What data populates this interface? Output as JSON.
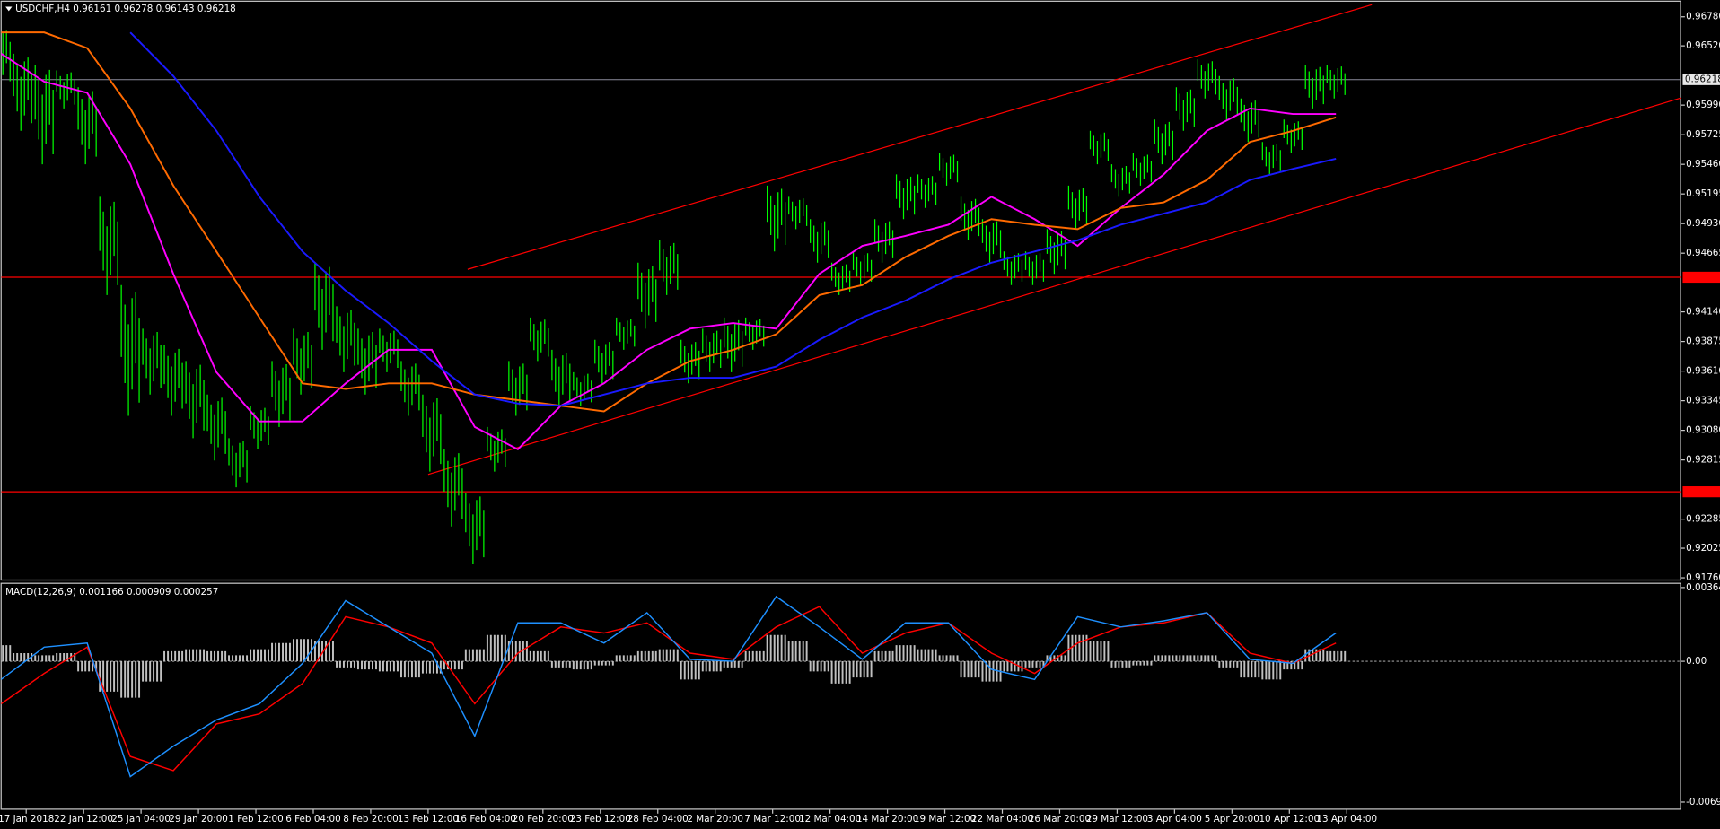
{
  "chart_data": [
    {
      "type": "candlestick",
      "title": "USDCHF,H4  0.96161 0.96278 0.96143 0.96218",
      "xlim": [
        0,
        468
      ],
      "xticks": [
        {
          "value": 7,
          "label": "17 Jan 2018"
        },
        {
          "value": 23,
          "label": "22 Jan 12:00"
        },
        {
          "value": 39,
          "label": "25 Jan 04:00"
        },
        {
          "value": 55,
          "label": "29 Jan 20:00"
        },
        {
          "value": 71,
          "label": "1 Feb 12:00"
        },
        {
          "value": 87,
          "label": "6 Feb 04:00"
        },
        {
          "value": 103,
          "label": "8 Feb 20:00"
        },
        {
          "value": 119,
          "label": "13 Feb 12:00"
        },
        {
          "value": 135,
          "label": "16 Feb 04:00"
        },
        {
          "value": 151,
          "label": "20 Feb 20:00"
        },
        {
          "value": 167,
          "label": "23 Feb 12:00"
        },
        {
          "value": 183,
          "label": "28 Feb 04:00"
        },
        {
          "value": 199,
          "label": "2 Mar 20:00"
        },
        {
          "value": 215,
          "label": "7 Mar 12:00"
        },
        {
          "value": 231,
          "label": "12 Mar 04:00"
        },
        {
          "value": 247,
          "label": "14 Mar 20:00"
        },
        {
          "value": 263,
          "label": "19 Mar 12:00"
        },
        {
          "value": 279,
          "label": "22 Mar 04:00"
        },
        {
          "value": 295,
          "label": "26 Mar 20:00"
        },
        {
          "value": 311,
          "label": "29 Mar 12:00"
        },
        {
          "value": 327,
          "label": "3 Apr 04:00"
        },
        {
          "value": 343,
          "label": "5 Apr 20:00"
        },
        {
          "value": 359,
          "label": "10 Apr 12:00"
        },
        {
          "value": 375,
          "label": "13 Apr 04:00"
        }
      ],
      "ylim": [
        0.9175,
        0.9691
      ],
      "yticks": [
        {
          "value": 0.9678,
          "label": "0.96780"
        },
        {
          "value": 0.9652,
          "label": "0.96520"
        },
        {
          "value": 0.9599,
          "label": "0.95990"
        },
        {
          "value": 0.95725,
          "label": "0.95725"
        },
        {
          "value": 0.9546,
          "label": "0.95460"
        },
        {
          "value": 0.95195,
          "label": "0.95195"
        },
        {
          "value": 0.9493,
          "label": "0.94930"
        },
        {
          "value": 0.94665,
          "label": "0.94665"
        },
        {
          "value": 0.9414,
          "label": "0.94140"
        },
        {
          "value": 0.93875,
          "label": "0.93875"
        },
        {
          "value": 0.9361,
          "label": "0.93610"
        },
        {
          "value": 0.93345,
          "label": "0.93345"
        },
        {
          "value": 0.9308,
          "label": "0.93080"
        },
        {
          "value": 0.92815,
          "label": "0.92815"
        },
        {
          "value": 0.92285,
          "label": "0.92285"
        },
        {
          "value": 0.92025,
          "label": "0.92025"
        },
        {
          "value": 0.9176,
          "label": "0.91760"
        }
      ],
      "color": "#00ff00",
      "x": [
        0,
        6,
        12,
        18,
        24,
        30,
        36,
        42,
        48,
        54,
        60,
        66,
        72,
        78,
        84,
        90,
        96,
        102,
        108,
        114,
        120,
        126,
        132,
        138,
        144,
        150,
        156,
        162,
        168,
        174,
        180,
        186,
        192,
        198,
        204,
        210,
        216,
        222,
        228,
        234,
        240,
        246,
        252,
        258,
        264,
        270,
        276,
        282,
        288,
        294,
        300,
        306,
        312,
        318,
        324,
        330,
        336,
        342,
        348,
        354,
        360,
        366,
        372
      ],
      "high": [
        0.9669,
        0.9645,
        0.9635,
        0.963,
        0.9615,
        0.9517,
        0.9438,
        0.9399,
        0.9384,
        0.937,
        0.934,
        0.9301,
        0.933,
        0.937,
        0.9399,
        0.9458,
        0.9419,
        0.9399,
        0.9399,
        0.937,
        0.934,
        0.9291,
        0.9252,
        0.9311,
        0.937,
        0.9409,
        0.938,
        0.936,
        0.9389,
        0.9409,
        0.9458,
        0.9478,
        0.9389,
        0.9399,
        0.9409,
        0.9409,
        0.9527,
        0.9517,
        0.9497,
        0.9458,
        0.9468,
        0.9497,
        0.9537,
        0.9537,
        0.9556,
        0.9517,
        0.9497,
        0.9468,
        0.9468,
        0.9488,
        0.9527,
        0.9576,
        0.9546,
        0.9556,
        0.9586,
        0.9615,
        0.964,
        0.9625,
        0.9605,
        0.9566,
        0.9586,
        0.9635,
        0.9635
      ],
      "low": [
        0.9615,
        0.9576,
        0.9546,
        0.9596,
        0.9546,
        0.9429,
        0.9321,
        0.934,
        0.9321,
        0.9301,
        0.9281,
        0.9257,
        0.9291,
        0.9311,
        0.934,
        0.938,
        0.936,
        0.934,
        0.936,
        0.9321,
        0.9271,
        0.9222,
        0.9188,
        0.9271,
        0.9321,
        0.937,
        0.933,
        0.933,
        0.935,
        0.938,
        0.9399,
        0.9429,
        0.935,
        0.936,
        0.936,
        0.938,
        0.9468,
        0.9488,
        0.9458,
        0.9429,
        0.9438,
        0.9458,
        0.9497,
        0.9507,
        0.9527,
        0.9478,
        0.9458,
        0.9438,
        0.9438,
        0.9448,
        0.9488,
        0.9546,
        0.9517,
        0.9527,
        0.9546,
        0.9576,
        0.9605,
        0.9586,
        0.9566,
        0.9537,
        0.9556,
        0.9596,
        0.9605
      ],
      "overlay_x": [
        0,
        12,
        24,
        36,
        48,
        60,
        72,
        84,
        96,
        108,
        120,
        132,
        144,
        156,
        168,
        180,
        192,
        204,
        216,
        228,
        240,
        252,
        264,
        276,
        288,
        300,
        312,
        324,
        336,
        348,
        360,
        372
      ],
      "overlays": [
        {
          "color": "#ff00ff",
          "values": [
            0.9645,
            0.962,
            0.961,
            0.9546,
            0.9448,
            0.936,
            0.9316,
            0.9316,
            0.935,
            0.938,
            0.938,
            0.9311,
            0.9291,
            0.933,
            0.935,
            0.938,
            0.9399,
            0.9404,
            0.9399,
            0.9448,
            0.9473,
            0.9482,
            0.9492,
            0.9517,
            0.9497,
            0.9473,
            0.9507,
            0.9537,
            0.9576,
            0.9596,
            0.9591,
            0.9591
          ]
        },
        {
          "color": "#ff6a00",
          "values": [
            0.9664,
            0.9664,
            0.965,
            0.9596,
            0.9527,
            0.9468,
            0.9409,
            0.935,
            0.9345,
            0.935,
            0.935,
            0.934,
            0.9335,
            0.933,
            0.9325,
            0.935,
            0.937,
            0.938,
            0.9394,
            0.9429,
            0.9438,
            0.9463,
            0.9482,
            0.9497,
            0.9492,
            0.9488,
            0.9507,
            0.9512,
            0.9532,
            0.9566,
            0.9576,
            0.9588
          ]
        },
        {
          "color": "#1a1aff",
          "values": [
            null,
            null,
            null,
            0.9664,
            0.9625,
            0.9576,
            0.9517,
            0.9468,
            0.9433,
            0.9404,
            0.937,
            0.934,
            0.9332,
            0.933,
            0.934,
            0.935,
            0.9355,
            0.9355,
            0.9365,
            0.9389,
            0.9409,
            0.9424,
            0.9443,
            0.9458,
            0.9468,
            0.9478,
            0.9492,
            0.9502,
            0.9512,
            0.9532,
            0.9542,
            0.9551
          ]
        }
      ],
      "hlines": [
        {
          "value": 0.9445,
          "color": "#ff0000"
        },
        {
          "value": 0.9253,
          "color": "#ff0000"
        }
      ],
      "last_price": 0.96218,
      "trendlines": [
        {
          "color": "#ff0000",
          "x": [
            130,
            382
          ],
          "y": [
            0.9452,
            0.96888
          ]
        },
        {
          "color": "#ff0000",
          "x": [
            119,
            468
          ],
          "y": [
            0.92685,
            0.96053
          ]
        }
      ]
    },
    {
      "type": "macd",
      "title": "MACD(12,26,9) 0.001166 0.000909 0.000257",
      "ylim": [
        -0.0072,
        0.0038
      ],
      "yticks": [
        0.003645,
        {
          "value": 0,
          "label": "0.00"
        },
        -0.006957
      ],
      "x": [
        0,
        6,
        12,
        18,
        24,
        30,
        36,
        42,
        48,
        54,
        60,
        66,
        72,
        78,
        84,
        90,
        96,
        102,
        108,
        114,
        120,
        126,
        132,
        138,
        144,
        150,
        156,
        162,
        168,
        174,
        180,
        186,
        192,
        198,
        204,
        210,
        216,
        222,
        228,
        234,
        240,
        246,
        252,
        258,
        264,
        270,
        276,
        282,
        288,
        294,
        300,
        306,
        312,
        318,
        324,
        330,
        336,
        342,
        348,
        354,
        360,
        366,
        372
      ],
      "histogram": {
        "color": "#c0c0c0",
        "values": [
          0.0008,
          0.0004,
          0.0003,
          0.0004,
          -0.0005,
          -0.0015,
          -0.0018,
          -0.001,
          0.0005,
          0.0006,
          0.0005,
          0.0003,
          0.0006,
          0.0009,
          0.0011,
          0.001,
          -0.0003,
          -0.0004,
          -0.0005,
          -0.0008,
          -0.0006,
          -0.0004,
          0.0006,
          0.0013,
          0.001,
          0.0005,
          -0.0003,
          -0.0004,
          -0.0002,
          0.0003,
          0.0005,
          0.0006,
          -0.0009,
          -0.0005,
          -0.0003,
          0.0005,
          0.0013,
          0.001,
          -0.0005,
          -0.0011,
          -0.0008,
          0.0005,
          0.0008,
          0.0006,
          0.0003,
          -0.0008,
          -0.001,
          -0.0005,
          -0.0003,
          0.0003,
          0.0013,
          0.001,
          -0.0003,
          -0.0002,
          0.0003,
          0.0003,
          0.0003,
          -0.0003,
          -0.0008,
          -0.0009,
          -0.0004,
          0.0006,
          0.0005
        ]
      },
      "line_x": [
        0,
        12,
        24,
        36,
        48,
        60,
        72,
        84,
        96,
        108,
        120,
        132,
        144,
        156,
        168,
        180,
        192,
        204,
        216,
        228,
        240,
        252,
        264,
        276,
        288,
        300,
        312,
        324,
        336,
        348,
        360,
        372
      ],
      "macd": {
        "color": "#1e90ff",
        "values": [
          -0.0009,
          0.0007,
          0.0009,
          -0.0057,
          -0.0042,
          -0.0029,
          -0.0021,
          -0.0001,
          0.003,
          0.0017,
          0.0004,
          -0.0037,
          0.0019,
          0.0019,
          0.0009,
          0.0024,
          0.0001,
          0.0,
          0.0032,
          0.0017,
          0.0001,
          0.0019,
          0.0019,
          -0.0004,
          -0.0009,
          0.0022,
          0.0017,
          0.002,
          0.0024,
          0.0001,
          -0.0001,
          0.0014
        ]
      },
      "signal": {
        "color": "#ff0000",
        "values": [
          -0.0021,
          -0.0006,
          0.0007,
          -0.0047,
          -0.0054,
          -0.0031,
          -0.0026,
          -0.0011,
          0.0022,
          0.0017,
          0.0009,
          -0.0021,
          0.0004,
          0.0017,
          0.0014,
          0.0019,
          0.0004,
          0.0001,
          0.0017,
          0.0027,
          0.0004,
          0.0014,
          0.0019,
          0.0004,
          -0.0006,
          0.0009,
          0.0017,
          0.0019,
          0.0024,
          0.0004,
          -0.0001,
          0.0009
        ]
      }
    }
  ]
}
